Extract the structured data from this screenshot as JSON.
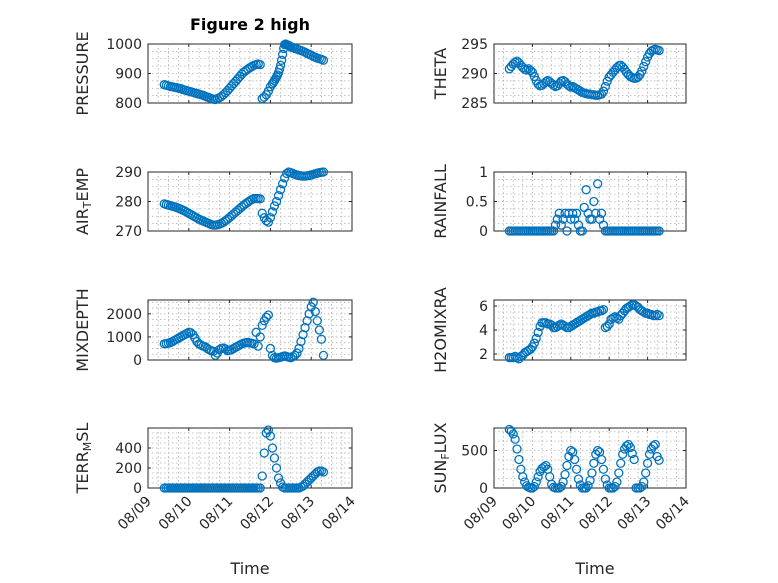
{
  "chart_data": [
    {
      "type": "scatter",
      "title": "Figure 2 high",
      "ylabel": "PRESSURE",
      "xlabel": "",
      "ylim": [
        800,
        1000
      ],
      "yticks": [
        800,
        900,
        1000
      ],
      "xticks": [],
      "grid": true,
      "x": [
        0.8,
        0.9,
        1.0,
        1.1,
        1.2,
        1.3,
        1.4,
        1.5,
        1.6,
        1.7,
        1.8,
        1.9,
        2.0,
        2.1,
        2.2,
        2.3,
        2.4,
        2.5,
        2.6,
        2.7,
        2.8,
        2.9,
        3.0,
        3.1,
        3.2,
        3.3,
        3.4,
        3.5,
        3.6,
        3.7,
        3.8,
        3.9,
        4.0,
        4.1,
        4.2,
        4.3,
        4.4,
        4.5,
        4.6,
        4.7,
        4.8,
        4.9,
        5.0,
        5.1,
        5.2,
        5.3,
        5.4,
        5.5,
        5.6,
        5.7,
        5.8,
        5.9,
        6.0,
        6.1,
        6.15,
        6.2,
        6.25,
        6.3,
        6.35,
        6.4,
        6.45,
        6.5,
        6.55,
        6.6,
        6.65,
        6.7,
        6.75,
        6.8,
        6.85,
        6.9,
        6.95,
        7.0,
        7.1,
        7.2,
        7.3,
        7.4,
        7.5,
        7.6,
        7.7,
        7.8,
        7.9,
        8.0,
        8.1,
        8.2,
        8.3,
        8.4,
        8.5,
        8.6
      ],
      "y": [
        862,
        860,
        858,
        856,
        855,
        853,
        852,
        850,
        849,
        846,
        844,
        842,
        840,
        838,
        836,
        834,
        832,
        830,
        828,
        826,
        823,
        820,
        818,
        815,
        813,
        812,
        815,
        818,
        822,
        828,
        835,
        842,
        850,
        858,
        866,
        874,
        882,
        890,
        898,
        905,
        910,
        915,
        920,
        924,
        928,
        930,
        932,
        930,
        815,
        820,
        828,
        840,
        855,
        865,
        870,
        876,
        882,
        888,
        895,
        903,
        915,
        928,
        945,
        965,
        985,
        998,
        1000,
        998,
        996,
        995,
        993,
        990,
        988,
        985,
        983,
        980,
        978,
        975,
        972,
        968,
        965,
        962,
        958,
        955,
        952,
        950,
        948,
        945
      ]
    },
    {
      "type": "scatter",
      "title": "",
      "ylabel": "THETA",
      "xlabel": "",
      "ylim": [
        285,
        295
      ],
      "yticks": [
        285,
        290,
        295
      ],
      "xticks": [],
      "grid": true,
      "x": [
        0.8,
        0.9,
        1.0,
        1.1,
        1.2,
        1.3,
        1.4,
        1.5,
        1.6,
        1.7,
        1.8,
        1.9,
        2.0,
        2.1,
        2.2,
        2.3,
        2.4,
        2.5,
        2.6,
        2.7,
        2.8,
        2.9,
        3.0,
        3.1,
        3.2,
        3.3,
        3.4,
        3.5,
        3.6,
        3.7,
        3.8,
        3.9,
        4.0,
        4.1,
        4.2,
        4.3,
        4.4,
        4.5,
        4.6,
        4.7,
        4.8,
        4.9,
        5.0,
        5.1,
        5.2,
        5.3,
        5.4,
        5.5,
        5.6,
        5.7,
        5.8,
        5.9,
        6.0,
        6.1,
        6.2,
        6.3,
        6.4,
        6.5,
        6.6,
        6.7,
        6.8,
        6.9,
        7.0,
        7.1,
        7.2,
        7.3,
        7.4,
        7.5,
        7.6,
        7.7,
        7.8,
        7.9,
        8.0,
        8.1,
        8.2,
        8.3,
        8.4,
        8.5,
        8.6
      ],
      "y": [
        290.8,
        291.2,
        291.6,
        291.9,
        292.1,
        291.8,
        291.4,
        291.0,
        290.7,
        290.6,
        290.8,
        290.5,
        290.2,
        289.5,
        288.8,
        288.2,
        287.9,
        288.0,
        288.3,
        288.6,
        288.8,
        288.6,
        288.3,
        288.0,
        287.8,
        287.9,
        288.3,
        288.7,
        288.8,
        288.6,
        288.2,
        287.9,
        287.7,
        287.8,
        287.6,
        287.4,
        287.2,
        287.0,
        286.8,
        286.7,
        286.6,
        286.5,
        286.5,
        286.4,
        286.4,
        286.3,
        286.3,
        286.4,
        286.5,
        287.0,
        287.8,
        288.7,
        289.4,
        289.8,
        290.2,
        290.6,
        291.0,
        291.3,
        291.4,
        291.1,
        290.7,
        290.2,
        289.8,
        289.5,
        289.3,
        289.2,
        289.2,
        289.4,
        289.8,
        290.4,
        291.2,
        292.0,
        292.8,
        293.4,
        293.8,
        294.0,
        294.1,
        294.0,
        293.9
      ]
    },
    {
      "type": "scatter",
      "title": "",
      "ylabel": "AIR_TEMP",
      "xlabel": "",
      "ylim": [
        270,
        290
      ],
      "yticks": [
        270,
        280,
        290
      ],
      "xticks": [],
      "grid": true,
      "x": [
        0.8,
        0.9,
        1.0,
        1.1,
        1.2,
        1.3,
        1.4,
        1.5,
        1.6,
        1.7,
        1.8,
        1.9,
        2.0,
        2.1,
        2.2,
        2.3,
        2.4,
        2.5,
        2.6,
        2.7,
        2.8,
        2.9,
        3.0,
        3.1,
        3.2,
        3.3,
        3.4,
        3.5,
        3.6,
        3.7,
        3.8,
        3.9,
        4.0,
        4.1,
        4.2,
        4.3,
        4.4,
        4.5,
        4.6,
        4.7,
        4.8,
        4.9,
        5.0,
        5.1,
        5.2,
        5.3,
        5.4,
        5.5,
        5.6,
        5.7,
        5.8,
        5.9,
        6.0,
        6.1,
        6.2,
        6.3,
        6.4,
        6.5,
        6.6,
        6.7,
        6.8,
        6.9,
        7.0,
        7.1,
        7.2,
        7.3,
        7.4,
        7.5,
        7.6,
        7.7,
        7.8,
        7.9,
        8.0,
        8.1,
        8.2,
        8.3,
        8.4,
        8.5,
        8.6
      ],
      "y": [
        279.2,
        279.0,
        278.8,
        278.6,
        278.4,
        278.2,
        278.0,
        277.7,
        277.4,
        277.1,
        276.8,
        276.4,
        276.0,
        275.6,
        275.2,
        274.8,
        274.4,
        274.0,
        273.7,
        273.4,
        273.1,
        272.8,
        272.5,
        272.2,
        272.0,
        272.0,
        272.1,
        272.3,
        272.6,
        273.0,
        273.5,
        274.0,
        274.6,
        275.2,
        275.8,
        276.4,
        277.0,
        277.6,
        278.2,
        278.8,
        279.3,
        279.8,
        280.3,
        280.7,
        281.0,
        281.0,
        281.0,
        280.9,
        276.0,
        274.5,
        273.5,
        273.0,
        274.5,
        276.5,
        278.5,
        280.0,
        282.0,
        284.0,
        286.0,
        288.0,
        289.5,
        290.0,
        289.8,
        289.5,
        289.2,
        289.0,
        288.8,
        288.7,
        288.6,
        288.6,
        288.7,
        288.8,
        289.0,
        289.2,
        289.4,
        289.6,
        289.8,
        289.9,
        290.0
      ]
    },
    {
      "type": "scatter",
      "title": "",
      "ylabel": "RAINFALL",
      "xlabel": "",
      "ylim": [
        0,
        1
      ],
      "yticks": [
        0,
        0.5,
        1
      ],
      "xticks": [],
      "grid": true,
      "x": [
        0.8,
        0.9,
        1.0,
        1.1,
        1.2,
        1.3,
        1.4,
        1.5,
        1.6,
        1.7,
        1.8,
        1.9,
        2.0,
        2.1,
        2.2,
        2.3,
        2.4,
        2.5,
        2.6,
        2.7,
        2.8,
        2.9,
        3.0,
        3.1,
        3.2,
        3.3,
        3.4,
        3.5,
        3.6,
        3.7,
        3.8,
        3.9,
        4.0,
        4.1,
        4.2,
        4.3,
        4.4,
        4.5,
        4.6,
        4.7,
        4.8,
        4.9,
        5.0,
        5.1,
        5.2,
        5.3,
        5.4,
        5.5,
        5.6,
        5.7,
        5.8,
        5.9,
        6.0,
        6.1,
        6.2,
        6.3,
        6.4,
        6.5,
        6.6,
        6.7,
        6.8,
        6.9,
        7.0,
        7.1,
        7.2,
        7.3,
        7.4,
        7.5,
        7.6,
        7.7,
        7.8,
        7.9,
        8.0,
        8.1,
        8.2,
        8.3,
        8.4,
        8.5,
        8.6
      ],
      "y": [
        0,
        0,
        0,
        0,
        0,
        0,
        0,
        0,
        0,
        0,
        0,
        0,
        0,
        0,
        0,
        0,
        0,
        0,
        0,
        0,
        0,
        0,
        0,
        0,
        0.1,
        0.2,
        0.3,
        0.1,
        0.2,
        0.3,
        0,
        0.3,
        0.2,
        0.3,
        0.2,
        0.3,
        0.1,
        0,
        0,
        0.4,
        0.7,
        0.3,
        0.2,
        0.2,
        0.5,
        0.3,
        0.8,
        0.2,
        0.3,
        0.1,
        0,
        0,
        0,
        0,
        0,
        0,
        0,
        0,
        0,
        0,
        0,
        0,
        0,
        0,
        0,
        0,
        0,
        0,
        0,
        0,
        0,
        0,
        0,
        0,
        0,
        0,
        0,
        0,
        0
      ]
    },
    {
      "type": "scatter",
      "title": "",
      "ylabel": "MIXDEPTH",
      "xlabel": "",
      "ylim": [
        0,
        2600
      ],
      "yticks": [
        0,
        1000,
        2000
      ],
      "xticks": [],
      "grid": true,
      "x": [
        0.8,
        0.9,
        1.0,
        1.1,
        1.2,
        1.3,
        1.4,
        1.5,
        1.6,
        1.7,
        1.8,
        1.9,
        2.0,
        2.1,
        2.2,
        2.3,
        2.4,
        2.5,
        2.6,
        2.7,
        2.8,
        2.9,
        3.0,
        3.1,
        3.2,
        3.3,
        3.4,
        3.5,
        3.6,
        3.7,
        3.8,
        3.9,
        4.0,
        4.1,
        4.2,
        4.3,
        4.4,
        4.5,
        4.6,
        4.7,
        4.8,
        4.9,
        5.0,
        5.1,
        5.2,
        5.3,
        5.4,
        5.5,
        5.6,
        5.7,
        5.8,
        5.9,
        6.0,
        6.1,
        6.2,
        6.3,
        6.4,
        6.5,
        6.6,
        6.7,
        6.8,
        6.9,
        7.0,
        7.1,
        7.2,
        7.3,
        7.4,
        7.5,
        7.6,
        7.7,
        7.8,
        7.9,
        8.0,
        8.1,
        8.2,
        8.3,
        8.4,
        8.5,
        8.6
      ],
      "y": [
        700,
        710,
        730,
        760,
        800,
        850,
        900,
        950,
        1000,
        1050,
        1100,
        1150,
        1200,
        1180,
        1100,
        950,
        800,
        700,
        650,
        600,
        580,
        500,
        450,
        400,
        380,
        200,
        300,
        450,
        500,
        520,
        480,
        400,
        420,
        450,
        500,
        550,
        600,
        650,
        700,
        730,
        750,
        760,
        740,
        720,
        700,
        1200,
        600,
        1000,
        1500,
        1700,
        1850,
        1950,
        500,
        200,
        100,
        80,
        100,
        120,
        150,
        180,
        150,
        120,
        100,
        150,
        200,
        300,
        500,
        800,
        1100,
        1400,
        1700,
        2000,
        2300,
        2500,
        2100,
        1700,
        1300,
        900,
        200
      ]
    },
    {
      "type": "scatter",
      "title": "",
      "ylabel": "H2OMIXRA",
      "xlabel": "",
      "ylim": [
        1.5,
        6.5
      ],
      "yticks": [
        2,
        4,
        6
      ],
      "xticks": [],
      "grid": true,
      "x": [
        0.8,
        0.9,
        1.0,
        1.1,
        1.2,
        1.3,
        1.4,
        1.5,
        1.6,
        1.7,
        1.8,
        1.9,
        2.0,
        2.1,
        2.2,
        2.3,
        2.4,
        2.5,
        2.6,
        2.7,
        2.8,
        2.9,
        3.0,
        3.1,
        3.2,
        3.3,
        3.4,
        3.5,
        3.6,
        3.7,
        3.8,
        3.9,
        4.0,
        4.1,
        4.2,
        4.3,
        4.4,
        4.5,
        4.6,
        4.7,
        4.8,
        4.9,
        5.0,
        5.1,
        5.2,
        5.3,
        5.4,
        5.5,
        5.6,
        5.7,
        5.8,
        5.9,
        6.0,
        6.1,
        6.2,
        6.3,
        6.4,
        6.5,
        6.6,
        6.7,
        6.8,
        6.9,
        7.0,
        7.1,
        7.2,
        7.3,
        7.4,
        7.5,
        7.6,
        7.7,
        7.8,
        7.9,
        8.0,
        8.1,
        8.2,
        8.3,
        8.4,
        8.5,
        8.6
      ],
      "y": [
        1.7,
        1.7,
        1.7,
        1.8,
        1.7,
        1.6,
        1.8,
        1.9,
        2.1,
        2.2,
        2.3,
        2.4,
        2.6,
        2.9,
        3.3,
        3.8,
        4.3,
        4.6,
        4.6,
        4.6,
        4.5,
        4.5,
        4.4,
        4.2,
        4.2,
        4.3,
        4.4,
        4.5,
        4.4,
        4.3,
        4.2,
        4.2,
        4.3,
        4.4,
        4.5,
        4.6,
        4.7,
        4.8,
        4.9,
        5.0,
        5.1,
        5.2,
        5.3,
        5.4,
        5.4,
        5.5,
        5.5,
        5.6,
        5.6,
        5.7,
        4.2,
        4.3,
        4.5,
        4.9,
        5.0,
        5.1,
        5.0,
        4.9,
        5.2,
        5.4,
        5.6,
        5.8,
        5.9,
        6.0,
        6.1,
        6.1,
        6.0,
        5.9,
        5.7,
        5.6,
        5.5,
        5.4,
        5.4,
        5.3,
        5.3,
        5.2,
        5.2,
        5.3,
        5.2
      ]
    },
    {
      "type": "scatter",
      "title": "",
      "ylabel": "TERR_MSL",
      "xlabel": "Time",
      "ylim": [
        0,
        600
      ],
      "yticks": [
        0,
        200,
        400
      ],
      "xticks": [
        "08/09",
        "08/10",
        "08/11",
        "08/12",
        "08/13",
        "08/14"
      ],
      "grid": true,
      "x": [
        0.8,
        0.9,
        1.0,
        1.1,
        1.2,
        1.3,
        1.4,
        1.5,
        1.6,
        1.7,
        1.8,
        1.9,
        2.0,
        2.1,
        2.2,
        2.3,
        2.4,
        2.5,
        2.6,
        2.7,
        2.8,
        2.9,
        3.0,
        3.1,
        3.2,
        3.3,
        3.4,
        3.5,
        3.6,
        3.7,
        3.8,
        3.9,
        4.0,
        4.1,
        4.2,
        4.3,
        4.4,
        4.5,
        4.6,
        4.7,
        4.8,
        4.9,
        5.0,
        5.1,
        5.2,
        5.3,
        5.4,
        5.5,
        5.6,
        5.7,
        5.8,
        5.9,
        6.0,
        6.1,
        6.2,
        6.3,
        6.4,
        6.5,
        6.6,
        6.7,
        6.8,
        6.9,
        7.0,
        7.1,
        7.2,
        7.3,
        7.4,
        7.5,
        7.6,
        7.7,
        7.8,
        7.9,
        8.0,
        8.1,
        8.2,
        8.3,
        8.4,
        8.5,
        8.6
      ],
      "y": [
        0,
        0,
        0,
        0,
        0,
        0,
        0,
        0,
        0,
        0,
        0,
        0,
        0,
        0,
        0,
        0,
        0,
        0,
        0,
        0,
        0,
        0,
        0,
        0,
        0,
        0,
        0,
        0,
        0,
        0,
        0,
        0,
        0,
        0,
        0,
        0,
        0,
        0,
        0,
        0,
        0,
        0,
        0,
        0,
        0,
        0,
        0,
        0,
        120,
        350,
        550,
        580,
        520,
        400,
        300,
        200,
        100,
        50,
        10,
        0,
        0,
        0,
        0,
        0,
        0,
        0,
        0,
        10,
        20,
        40,
        60,
        80,
        100,
        120,
        140,
        160,
        170,
        170,
        160
      ]
    },
    {
      "type": "scatter",
      "title": "",
      "ylabel": "SUN_FLUX",
      "xlabel": "Time",
      "ylim": [
        0,
        800
      ],
      "yticks": [
        0,
        500
      ],
      "xticks": [
        "08/09",
        "08/10",
        "08/11",
        "08/12",
        "08/13",
        "08/14"
      ],
      "grid": true,
      "x": [
        0.8,
        0.9,
        1.0,
        1.1,
        1.2,
        1.3,
        1.4,
        1.5,
        1.6,
        1.7,
        1.8,
        1.9,
        2.0,
        2.1,
        2.2,
        2.3,
        2.4,
        2.5,
        2.6,
        2.7,
        2.8,
        2.9,
        3.0,
        3.1,
        3.2,
        3.3,
        3.4,
        3.5,
        3.6,
        3.7,
        3.8,
        3.9,
        4.0,
        4.1,
        4.2,
        4.3,
        4.4,
        4.5,
        4.6,
        4.7,
        4.8,
        4.9,
        5.0,
        5.1,
        5.2,
        5.3,
        5.4,
        5.5,
        5.6,
        5.7,
        5.8,
        5.9,
        6.0,
        6.1,
        6.2,
        6.3,
        6.4,
        6.5,
        6.6,
        6.7,
        6.8,
        6.9,
        7.0,
        7.1,
        7.2,
        7.3,
        7.4,
        7.5,
        7.6,
        7.7,
        7.8,
        7.9,
        8.0,
        8.1,
        8.2,
        8.3,
        8.4,
        8.5,
        8.6
      ],
      "y": [
        780,
        760,
        720,
        650,
        520,
        380,
        250,
        150,
        80,
        30,
        10,
        0,
        0,
        20,
        80,
        150,
        220,
        260,
        280,
        300,
        250,
        150,
        50,
        10,
        0,
        0,
        0,
        20,
        80,
        180,
        300,
        420,
        500,
        480,
        380,
        250,
        120,
        40,
        0,
        0,
        0,
        30,
        100,
        200,
        330,
        450,
        500,
        480,
        380,
        250,
        120,
        40,
        0,
        0,
        0,
        20,
        80,
        200,
        330,
        450,
        520,
        560,
        580,
        540,
        460,
        380,
        0,
        0,
        0,
        20,
        80,
        200,
        330,
        450,
        520,
        560,
        580,
        420,
        370
      ]
    }
  ]
}
